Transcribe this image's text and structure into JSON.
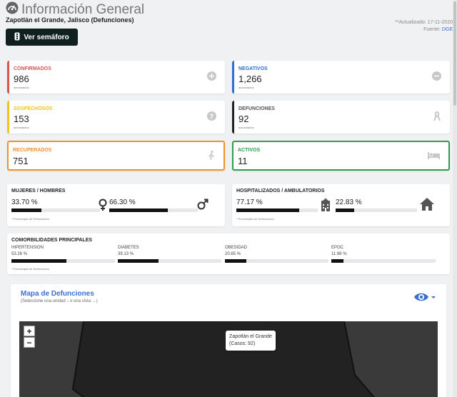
{
  "header": {
    "title": "Información General",
    "location": "Zapotlán el Grande, Jalisco (Defunciones)",
    "updated": "**Actualizado: 17-11-2020",
    "source_label": "Fuente:",
    "source_link": "DGE",
    "semaforo_button": "Ver semáforo"
  },
  "stats": [
    {
      "label": "CONFIRMADOS",
      "value": "986",
      "sub": "acumulados",
      "color": "#d9534f",
      "icon": "plus-circle-icon"
    },
    {
      "label": "NEGATIVOS",
      "value": "1,266",
      "sub": "acumulados",
      "color": "#2f6fd1",
      "icon": "minus-circle-icon"
    },
    {
      "label": "SOSPECHOSOS",
      "value": "153",
      "sub": "acumulados",
      "color": "#f0c419",
      "icon": "question-circle-icon"
    },
    {
      "label": "DEFUNCIONES",
      "value": "92",
      "sub": "acumulados",
      "color": "#222222",
      "icon": "ribbon-icon"
    },
    {
      "label": "RECUPERADOS",
      "value": "751",
      "color": "#f0922a",
      "icon": "walking-icon"
    },
    {
      "label": "ACTIVOS",
      "value": "11",
      "color": "#2e9e4a",
      "icon": "bed-icon"
    }
  ],
  "gender": {
    "title": "MUJERES / HOMBRES",
    "women_pct": "33.70 %",
    "women_fill": 0.337,
    "men_pct": "66.30 %",
    "men_fill": 0.663,
    "note": "* Porcentajes de Defunciones"
  },
  "hosp": {
    "title": "HOSPITALIZADOS / AMBULATORIOS",
    "hosp_pct": "77.17 %",
    "hosp_fill": 0.7717,
    "amb_pct": "22.83 %",
    "amb_fill": 0.2283,
    "note": "* Porcentajes de Defunciones"
  },
  "comorbidities": {
    "title": "COMORBILIDADES PRINCIPALES",
    "items": [
      {
        "label": "HIPERTENSION",
        "pct": "53.26 %",
        "fill": 0.5326
      },
      {
        "label": "DIABETES",
        "pct": "39.13 %",
        "fill": 0.3913
      },
      {
        "label": "OBESIDAD",
        "pct": "20.65 %",
        "fill": 0.2065
      },
      {
        "label": "EPOC",
        "pct": "11.96 %",
        "fill": 0.1196
      }
    ],
    "note": "* Porcentajes de Defunciones"
  },
  "map": {
    "title": "Mapa de Defunciones",
    "subtitle": "(Seleccione una unidad ↓ o una vista →)",
    "zoom_in": "+",
    "zoom_out": "−",
    "tooltip_name": "Zapotlán el Grande",
    "tooltip_cases": "(Casos: 92)"
  },
  "colors": {
    "accent": "#3b6fd1",
    "dark": "#10201f"
  }
}
